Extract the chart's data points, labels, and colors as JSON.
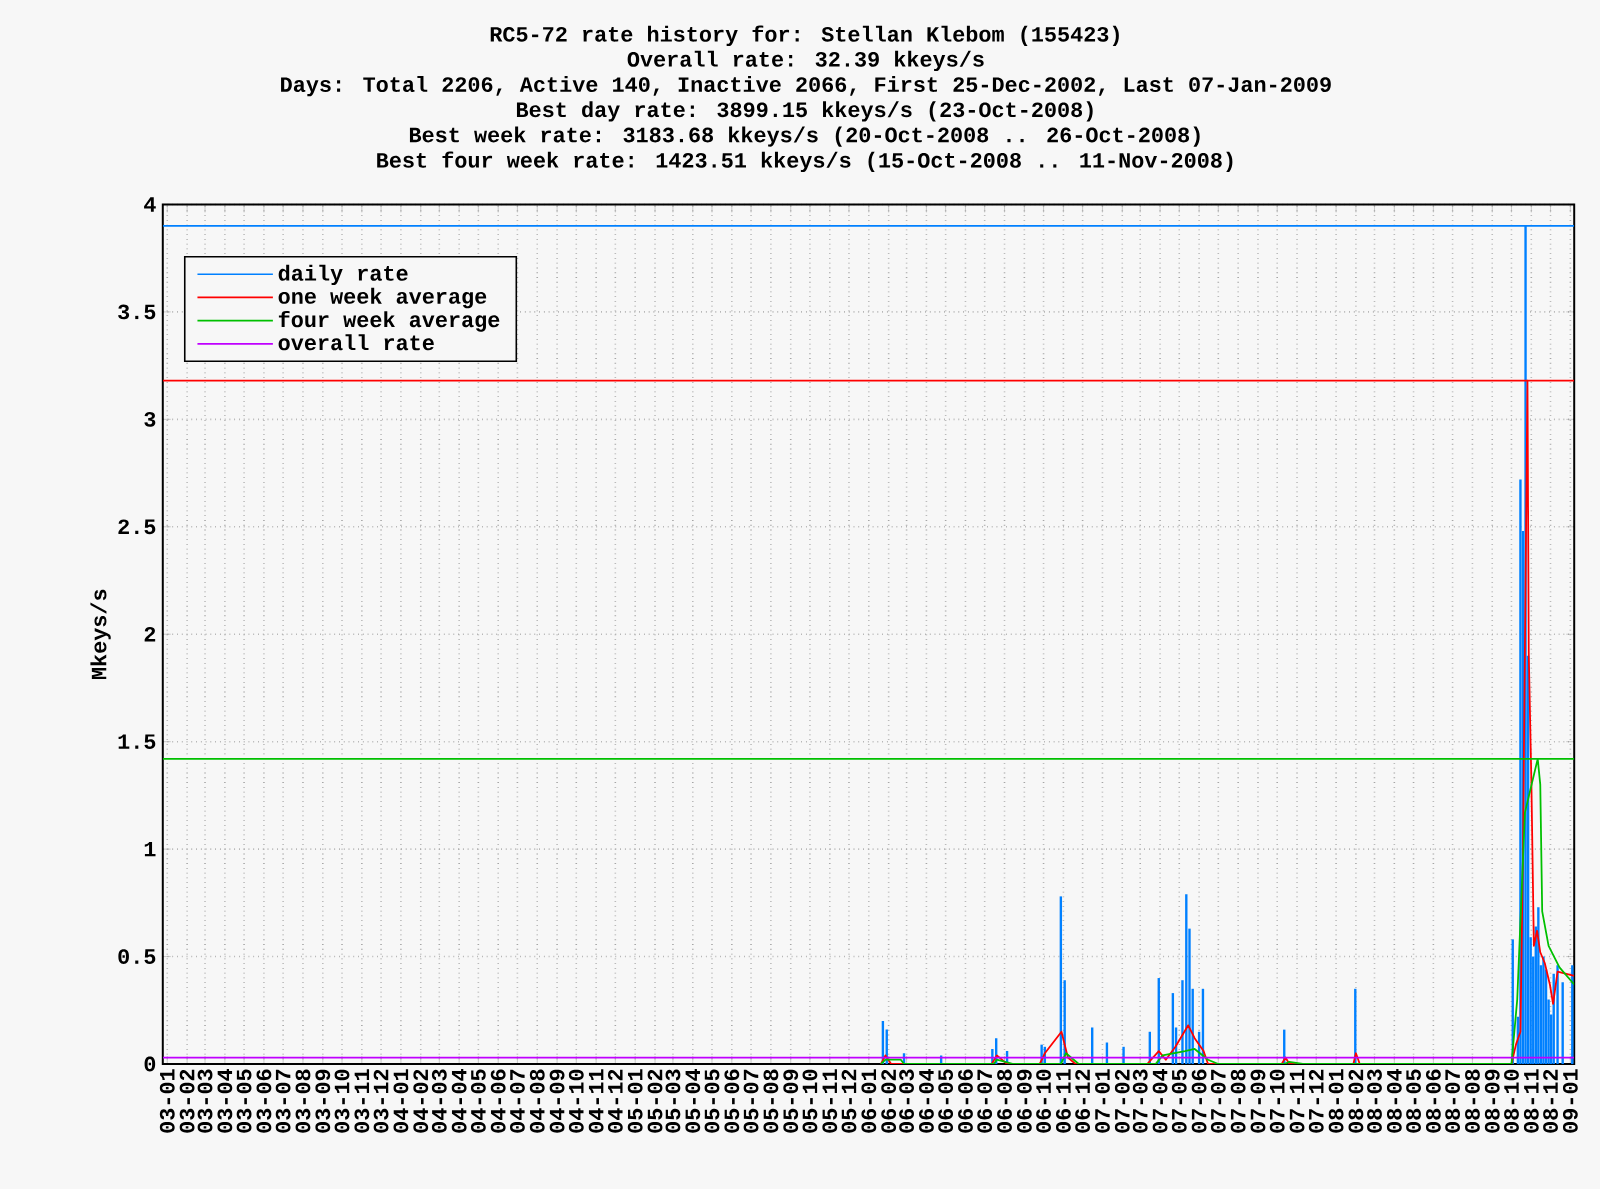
{
  "chart_data": {
    "type": "bar",
    "title": "RC5-72 rate history for: Stellan Klebom (155423)",
    "subtitle": "Overall rate: 32.39 kkeys/s",
    "annotations": [
      "Days: Total 2206,  Active 140, Inactive 2066, First 25-Dec-2002, Last 07-Jan-2009",
      "Best day rate: 3899.15 kkeys/s (23-Oct-2008)",
      "Best week rate: 3183.68 kkeys/s (20-Oct-2008 .. 26-Oct-2008)",
      "Best four week rate: 1423.51 kkeys/s (15-Oct-2008 .. 11-Nov-2008)"
    ],
    "ylabel": "Mkeys/s",
    "xlim": [
      "2002-12-25",
      "2009-01-07"
    ],
    "ylim": [
      0,
      4
    ],
    "yticks": [
      0,
      0.5,
      1,
      1.5,
      2,
      2.5,
      3,
      3.5,
      4
    ],
    "xticks": [
      {
        "value": "2003-01",
        "label": "03-01"
      },
      {
        "value": "2003-02",
        "label": "03-02"
      },
      {
        "value": "2003-03",
        "label": "03-03"
      },
      {
        "value": "2003-04",
        "label": "03-04"
      },
      {
        "value": "2003-05",
        "label": "03-05"
      },
      {
        "value": "2003-06",
        "label": "03-06"
      },
      {
        "value": "2003-07",
        "label": "03-07"
      },
      {
        "value": "2003-08",
        "label": "03-08"
      },
      {
        "value": "2003-09",
        "label": "03-09"
      },
      {
        "value": "2003-10",
        "label": "03-10"
      },
      {
        "value": "2003-11",
        "label": "03-11"
      },
      {
        "value": "2003-12",
        "label": "03-12"
      },
      {
        "value": "2004-01",
        "label": "04-01"
      },
      {
        "value": "2004-02",
        "label": "04-02"
      },
      {
        "value": "2004-03",
        "label": "04-03"
      },
      {
        "value": "2004-04",
        "label": "04-04"
      },
      {
        "value": "2004-05",
        "label": "04-05"
      },
      {
        "value": "2004-06",
        "label": "04-06"
      },
      {
        "value": "2004-07",
        "label": "04-07"
      },
      {
        "value": "2004-08",
        "label": "04-08"
      },
      {
        "value": "2004-09",
        "label": "04-09"
      },
      {
        "value": "2004-10",
        "label": "04-10"
      },
      {
        "value": "2004-11",
        "label": "04-11"
      },
      {
        "value": "2004-12",
        "label": "04-12"
      },
      {
        "value": "2005-01",
        "label": "05-01"
      },
      {
        "value": "2005-02",
        "label": "05-02"
      },
      {
        "value": "2005-03",
        "label": "05-03"
      },
      {
        "value": "2005-04",
        "label": "05-04"
      },
      {
        "value": "2005-05",
        "label": "05-05"
      },
      {
        "value": "2005-06",
        "label": "05-06"
      },
      {
        "value": "2005-07",
        "label": "05-07"
      },
      {
        "value": "2005-08",
        "label": "05-08"
      },
      {
        "value": "2005-09",
        "label": "05-09"
      },
      {
        "value": "2005-10",
        "label": "05-10"
      },
      {
        "value": "2005-11",
        "label": "05-11"
      },
      {
        "value": "2005-12",
        "label": "05-12"
      },
      {
        "value": "2006-01",
        "label": "06-01"
      },
      {
        "value": "2006-02",
        "label": "06-02"
      },
      {
        "value": "2006-03",
        "label": "06-03"
      },
      {
        "value": "2006-04",
        "label": "06-04"
      },
      {
        "value": "2006-05",
        "label": "06-05"
      },
      {
        "value": "2006-06",
        "label": "06-06"
      },
      {
        "value": "2006-07",
        "label": "06-07"
      },
      {
        "value": "2006-08",
        "label": "06-08"
      },
      {
        "value": "2006-09",
        "label": "06-09"
      },
      {
        "value": "2006-10",
        "label": "06-10"
      },
      {
        "value": "2006-11",
        "label": "06-11"
      },
      {
        "value": "2006-12",
        "label": "06-12"
      },
      {
        "value": "2007-01",
        "label": "07-01"
      },
      {
        "value": "2007-02",
        "label": "07-02"
      },
      {
        "value": "2007-03",
        "label": "07-03"
      },
      {
        "value": "2007-04",
        "label": "07-04"
      },
      {
        "value": "2007-05",
        "label": "07-05"
      },
      {
        "value": "2007-06",
        "label": "07-06"
      },
      {
        "value": "2007-07",
        "label": "07-07"
      },
      {
        "value": "2007-08",
        "label": "07-08"
      },
      {
        "value": "2007-09",
        "label": "07-09"
      },
      {
        "value": "2007-10",
        "label": "07-10"
      },
      {
        "value": "2007-11",
        "label": "07-11"
      },
      {
        "value": "2007-12",
        "label": "07-12"
      },
      {
        "value": "2008-01",
        "label": "08-01"
      },
      {
        "value": "2008-02",
        "label": "08-02"
      },
      {
        "value": "2008-03",
        "label": "08-03"
      },
      {
        "value": "2008-04",
        "label": "08-04"
      },
      {
        "value": "2008-05",
        "label": "08-05"
      },
      {
        "value": "2008-06",
        "label": "08-06"
      },
      {
        "value": "2008-07",
        "label": "08-07"
      },
      {
        "value": "2008-08",
        "label": "08-08"
      },
      {
        "value": "2008-09",
        "label": "08-09"
      },
      {
        "value": "2008-10",
        "label": "08-10"
      },
      {
        "value": "2008-11",
        "label": "08-11"
      },
      {
        "value": "2008-12",
        "label": "08-12"
      },
      {
        "value": "2009-01",
        "label": "09-01"
      }
    ],
    "grid": true,
    "legend": "top left",
    "marker": "none",
    "ref_lines": [
      {
        "axis": "y",
        "value": 3.9,
        "color": "#0080ff"
      },
      {
        "axis": "y",
        "value": 3.18,
        "color": "#ff0000"
      },
      {
        "axis": "y",
        "value": 1.42,
        "color": "#00c000"
      }
    ],
    "series": [
      {
        "name": "daily rate",
        "color": "#0080ff",
        "x": [
          "2006-01-23",
          "2006-01-29",
          "2006-02-25",
          "2006-04-24",
          "2006-07-13",
          "2006-07-19",
          "2006-08-05",
          "2006-09-28",
          "2006-10-03",
          "2006-10-28",
          "2006-11-03",
          "2006-12-16",
          "2007-01-08",
          "2007-02-03",
          "2007-03-16",
          "2007-03-30",
          "2007-04-21",
          "2007-04-26",
          "2007-05-06",
          "2007-05-12",
          "2007-05-17",
          "2007-05-22",
          "2007-06-01",
          "2007-06-07",
          "2007-10-12",
          "2008-01-31",
          "2008-10-03",
          "2008-10-11",
          "2008-10-15",
          "2008-10-19",
          "2008-10-23",
          "2008-10-27",
          "2008-10-31",
          "2008-11-04",
          "2008-11-08",
          "2008-11-12",
          "2008-11-16",
          "2008-11-20",
          "2008-11-24",
          "2008-11-28",
          "2008-12-02",
          "2008-12-06",
          "2008-12-12",
          "2008-12-20",
          "2009-01-04"
        ],
        "values": [
          0.2,
          0.16,
          0.05,
          0.04,
          0.07,
          0.12,
          0.06,
          0.09,
          0.08,
          0.78,
          0.39,
          0.17,
          0.1,
          0.08,
          0.15,
          0.4,
          0.33,
          0.17,
          0.39,
          0.79,
          0.63,
          0.35,
          0.15,
          0.35,
          0.16,
          0.35,
          0.58,
          0.22,
          2.72,
          2.48,
          3.9,
          1.9,
          0.59,
          0.5,
          0.64,
          0.73,
          0.46,
          0.5,
          0.44,
          0.3,
          0.23,
          0.42,
          0.46,
          0.38,
          0.46
        ]
      },
      {
        "name": "one week average",
        "type": "line",
        "color": "#ff0000",
        "x": [
          "2006-01-20",
          "2006-01-27",
          "2006-02-05",
          "2006-07-12",
          "2006-07-20",
          "2006-08-05",
          "2006-09-25",
          "2006-10-03",
          "2006-10-29",
          "2006-11-08",
          "2006-11-20",
          "2007-03-12",
          "2007-03-30",
          "2007-04-10",
          "2007-04-25",
          "2007-05-15",
          "2007-05-25",
          "2007-06-08",
          "2007-06-15",
          "2007-10-08",
          "2007-10-14",
          "2007-10-20",
          "2008-01-28",
          "2008-02-01",
          "2008-02-07",
          "2008-10-01",
          "2008-10-08",
          "2008-10-15",
          "2008-10-19",
          "2008-10-26",
          "2008-10-28",
          "2008-11-01",
          "2008-11-05",
          "2008-11-10",
          "2008-11-15",
          "2008-11-22",
          "2008-11-30",
          "2008-12-05",
          "2008-12-12",
          "2009-01-07"
        ],
        "values": [
          0,
          0.04,
          0,
          0,
          0.04,
          0,
          0,
          0.05,
          0.15,
          0.03,
          0,
          0,
          0.06,
          0.02,
          0.08,
          0.18,
          0.12,
          0.06,
          0,
          0,
          0.03,
          0,
          0,
          0.05,
          0,
          0,
          0.09,
          0.15,
          1.0,
          3.18,
          1.91,
          1.33,
          0.55,
          0.62,
          0.52,
          0.47,
          0.37,
          0.28,
          0.43,
          0.41
        ]
      },
      {
        "name": "four week average",
        "type": "line",
        "color": "#00c000",
        "x": [
          "2006-01-20",
          "2006-01-27",
          "2006-02-20",
          "2006-02-25",
          "2006-07-15",
          "2006-07-20",
          "2006-08-15",
          "2006-10-28",
          "2006-11-05",
          "2006-11-25",
          "2007-03-25",
          "2007-04-05",
          "2007-05-10",
          "2007-05-25",
          "2007-06-15",
          "2007-07-01",
          "2007-10-12",
          "2007-10-20",
          "2007-11-10",
          "2008-10-01",
          "2008-10-10",
          "2008-10-22",
          "2008-11-11",
          "2008-11-15",
          "2008-11-18",
          "2008-11-28",
          "2008-12-15",
          "2009-01-07"
        ],
        "values": [
          0,
          0.02,
          0.02,
          0,
          0,
          0.02,
          0,
          0,
          0.05,
          0,
          0,
          0.04,
          0.06,
          0.07,
          0.02,
          0,
          0,
          0.01,
          0,
          0,
          0.3,
          1.17,
          1.42,
          1.3,
          0.71,
          0.55,
          0.45,
          0.37
        ]
      },
      {
        "name": "overall rate",
        "type": "line",
        "color": "#c000ff",
        "x": [
          "2002-12-25",
          "2009-01-07"
        ],
        "values": [
          0.03,
          0.03
        ]
      }
    ]
  }
}
